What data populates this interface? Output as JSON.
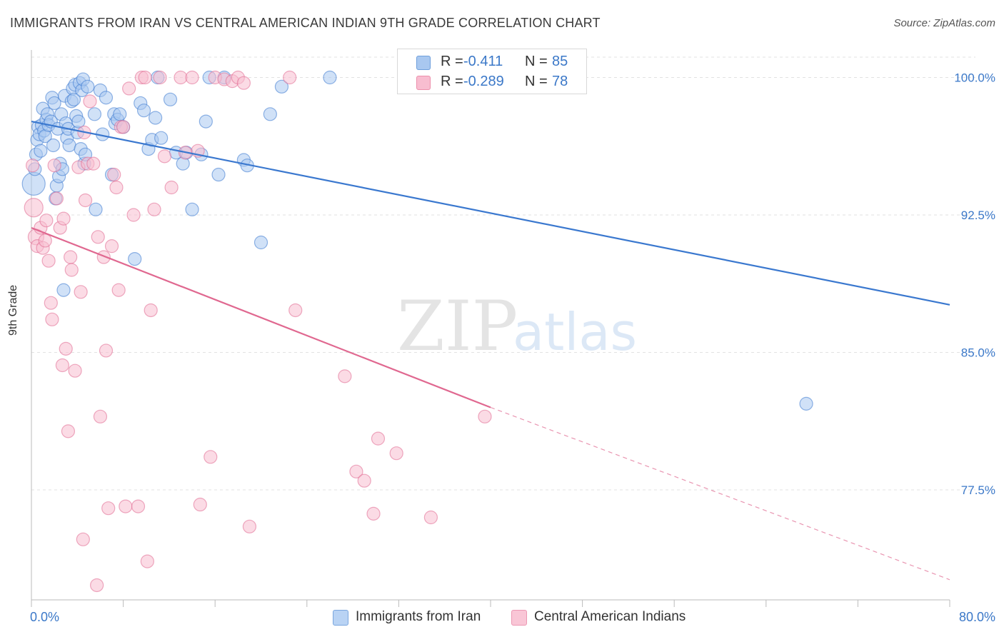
{
  "title": "IMMIGRANTS FROM IRAN VS CENTRAL AMERICAN INDIAN 9TH GRADE CORRELATION CHART",
  "source": "Source: ZipAtlas.com",
  "watermark": {
    "zip": "ZIP",
    "atlas": "atlas"
  },
  "legend": {
    "rows": [
      {
        "r_label": "R =",
        "r_value": "-0.411",
        "n_label": "N =",
        "n_value": "85",
        "fill": "#a9c8f0",
        "stroke": "#6e9fdc"
      },
      {
        "r_label": "R =",
        "r_value": "-0.289",
        "n_label": "N =",
        "n_value": "78",
        "fill": "#f8bdd0",
        "stroke": "#ec8fab"
      }
    ]
  },
  "bottom_legend": [
    {
      "label": "Immigrants from Iran",
      "fill": "#b9d3f4",
      "stroke": "#7aa6de"
    },
    {
      "label": "Central American Indians",
      "fill": "#f9c6d6",
      "stroke": "#ec98b3"
    }
  ],
  "chart_data": {
    "type": "scatter",
    "title": "IMMIGRANTS FROM IRAN VS CENTRAL AMERICAN INDIAN 9TH GRADE CORRELATION CHART",
    "xlabel": "",
    "ylabel": "9th Grade",
    "xlim": [
      0,
      80
    ],
    "ylim": [
      71.5,
      101.5
    ],
    "x_ticks": [
      "0.0%",
      "80.0%"
    ],
    "y_ticks": [
      {
        "value": 100,
        "label": "100.0%"
      },
      {
        "value": 92.5,
        "label": "92.5%"
      },
      {
        "value": 85,
        "label": "85.0%"
      },
      {
        "value": 77.5,
        "label": "77.5%"
      }
    ],
    "grid": true,
    "legend_placement": "top-center",
    "series": [
      {
        "name": "Immigrants from Iran",
        "color": "#3a78cf",
        "fill": "#a9c8f0",
        "trend": {
          "x0": 0,
          "y0": 97.6,
          "x1": 80,
          "y1": 87.6
        },
        "points": [
          [
            0.2,
            94.2,
            16
          ],
          [
            0.3,
            95.0,
            9
          ],
          [
            0.4,
            95.8,
            9
          ],
          [
            0.5,
            96.6,
            9
          ],
          [
            0.6,
            97.3,
            9
          ],
          [
            0.7,
            96.9,
            9
          ],
          [
            0.8,
            96.0,
            9
          ],
          [
            0.9,
            97.4,
            9
          ],
          [
            1.0,
            98.3,
            9
          ],
          [
            1.1,
            97.1,
            9
          ],
          [
            1.2,
            96.8,
            9
          ],
          [
            1.3,
            97.7,
            9
          ],
          [
            1.4,
            98.0,
            9
          ],
          [
            1.5,
            97.4,
            9
          ],
          [
            1.7,
            97.6,
            9
          ],
          [
            1.8,
            98.9,
            9
          ],
          [
            1.9,
            96.3,
            9
          ],
          [
            2.0,
            98.6,
            9
          ],
          [
            2.1,
            93.4,
            9
          ],
          [
            2.2,
            94.1,
            9
          ],
          [
            2.3,
            97.2,
            9
          ],
          [
            2.4,
            94.6,
            9
          ],
          [
            2.5,
            95.3,
            9
          ],
          [
            2.6,
            98.0,
            9
          ],
          [
            2.7,
            95.0,
            9
          ],
          [
            2.8,
            88.4,
            9
          ],
          [
            2.9,
            99.0,
            9
          ],
          [
            3.0,
            97.5,
            9
          ],
          [
            3.1,
            96.7,
            9
          ],
          [
            3.2,
            97.2,
            9
          ],
          [
            3.3,
            96.3,
            9
          ],
          [
            3.5,
            98.7,
            9
          ],
          [
            3.6,
            99.4,
            9
          ],
          [
            3.7,
            98.8,
            9
          ],
          [
            3.8,
            99.6,
            9
          ],
          [
            3.9,
            97.9,
            9
          ],
          [
            4.0,
            97.0,
            9
          ],
          [
            4.1,
            97.6,
            9
          ],
          [
            4.2,
            99.7,
            9
          ],
          [
            4.3,
            96.1,
            9
          ],
          [
            4.4,
            99.3,
            9
          ],
          [
            4.5,
            99.9,
            9
          ],
          [
            4.6,
            95.3,
            9
          ],
          [
            4.7,
            95.8,
            9
          ],
          [
            4.9,
            99.5,
            9
          ],
          [
            5.5,
            98.0,
            9
          ],
          [
            5.6,
            92.8,
            9
          ],
          [
            6.0,
            99.3,
            9
          ],
          [
            6.2,
            96.9,
            9
          ],
          [
            6.5,
            98.9,
            9
          ],
          [
            7.0,
            94.7,
            9
          ],
          [
            7.2,
            98.0,
            9
          ],
          [
            7.3,
            97.5,
            9
          ],
          [
            7.5,
            97.7,
            9
          ],
          [
            7.7,
            98.0,
            9
          ],
          [
            8.0,
            97.3,
            9
          ],
          [
            9.0,
            90.1,
            9
          ],
          [
            9.5,
            98.6,
            9
          ],
          [
            9.8,
            98.2,
            9
          ],
          [
            10.2,
            96.1,
            9
          ],
          [
            10.5,
            96.6,
            9
          ],
          [
            10.8,
            97.8,
            9
          ],
          [
            11.0,
            100.0,
            9
          ],
          [
            11.3,
            96.7,
            9
          ],
          [
            12.1,
            98.8,
            9
          ],
          [
            12.6,
            95.9,
            9
          ],
          [
            13.2,
            95.3,
            9
          ],
          [
            13.5,
            95.9,
            9
          ],
          [
            14.0,
            92.8,
            9
          ],
          [
            14.8,
            95.8,
            9
          ],
          [
            15.2,
            97.6,
            9
          ],
          [
            15.5,
            100.0,
            9
          ],
          [
            16.3,
            94.7,
            9
          ],
          [
            16.8,
            100.0,
            9
          ],
          [
            18.5,
            95.5,
            9
          ],
          [
            18.8,
            95.2,
            9
          ],
          [
            20.0,
            91.0,
            9
          ],
          [
            20.8,
            98.0,
            9
          ],
          [
            21.8,
            99.5,
            9
          ],
          [
            26.0,
            100.0,
            9
          ],
          [
            67.5,
            82.2,
            9
          ]
        ]
      },
      {
        "name": "Central American Indians",
        "color": "#e06890",
        "fill": "#f8bdd0",
        "trend": {
          "x0": 0,
          "y0": 91.8,
          "x1": 40,
          "y1": 82.0
        },
        "trend_extension": {
          "x0": 40,
          "y0": 82.0,
          "x1": 80,
          "y1": 72.6
        },
        "points": [
          [
            0.1,
            95.2,
            9
          ],
          [
            0.2,
            92.9,
            13
          ],
          [
            0.4,
            91.3,
            11
          ],
          [
            0.5,
            90.8,
            9
          ],
          [
            0.8,
            91.8,
            9
          ],
          [
            1.0,
            90.7,
            9
          ],
          [
            1.2,
            91.1,
            9
          ],
          [
            1.3,
            92.2,
            9
          ],
          [
            1.5,
            90.0,
            9
          ],
          [
            1.7,
            87.7,
            9
          ],
          [
            1.8,
            86.8,
            9
          ],
          [
            2.0,
            95.2,
            9
          ],
          [
            2.2,
            93.4,
            9
          ],
          [
            2.5,
            91.8,
            9
          ],
          [
            2.7,
            84.3,
            9
          ],
          [
            2.8,
            92.3,
            9
          ],
          [
            3.0,
            85.2,
            9
          ],
          [
            3.2,
            80.7,
            9
          ],
          [
            3.4,
            90.2,
            9
          ],
          [
            3.5,
            89.5,
            9
          ],
          [
            3.8,
            84.0,
            9
          ],
          [
            4.1,
            95.1,
            9
          ],
          [
            4.3,
            88.3,
            9
          ],
          [
            4.5,
            74.8,
            9
          ],
          [
            4.6,
            97.0,
            9
          ],
          [
            4.7,
            93.3,
            9
          ],
          [
            4.9,
            95.3,
            9
          ],
          [
            5.1,
            98.7,
            9
          ],
          [
            5.4,
            95.3,
            9
          ],
          [
            5.7,
            72.3,
            9
          ],
          [
            5.8,
            91.3,
            9
          ],
          [
            6.0,
            81.5,
            9
          ],
          [
            6.3,
            90.2,
            9
          ],
          [
            6.5,
            85.1,
            9
          ],
          [
            6.7,
            76.5,
            9
          ],
          [
            7.0,
            90.8,
            9
          ],
          [
            7.2,
            94.7,
            9
          ],
          [
            7.4,
            94.0,
            9
          ],
          [
            7.6,
            88.4,
            9
          ],
          [
            7.8,
            97.3,
            9
          ],
          [
            8.0,
            97.3,
            9
          ],
          [
            8.2,
            76.6,
            9
          ],
          [
            8.5,
            99.4,
            9
          ],
          [
            8.9,
            92.5,
            9
          ],
          [
            9.3,
            76.6,
            9
          ],
          [
            9.6,
            100.0,
            9
          ],
          [
            9.9,
            100.0,
            9
          ],
          [
            10.1,
            73.6,
            9
          ],
          [
            10.4,
            87.3,
            9
          ],
          [
            10.7,
            92.8,
            9
          ],
          [
            11.2,
            100.0,
            9
          ],
          [
            11.6,
            95.7,
            9
          ],
          [
            12.2,
            94.0,
            9
          ],
          [
            13.0,
            100.0,
            9
          ],
          [
            13.4,
            95.9,
            9
          ],
          [
            14.0,
            100.0,
            9
          ],
          [
            14.5,
            96.0,
            9
          ],
          [
            14.7,
            76.7,
            9
          ],
          [
            15.6,
            79.3,
            9
          ],
          [
            16.0,
            100.0,
            9
          ],
          [
            16.8,
            99.9,
            9
          ],
          [
            17.5,
            99.8,
            9
          ],
          [
            18.0,
            100.0,
            9
          ],
          [
            18.5,
            99.7,
            9
          ],
          [
            19.0,
            75.5,
            9
          ],
          [
            22.5,
            100.0,
            9
          ],
          [
            23.0,
            87.3,
            9
          ],
          [
            27.3,
            83.7,
            9
          ],
          [
            28.3,
            78.5,
            9
          ],
          [
            29.0,
            78.0,
            9
          ],
          [
            29.8,
            76.2,
            9
          ],
          [
            30.2,
            80.3,
            9
          ],
          [
            31.8,
            79.5,
            9
          ],
          [
            34.8,
            76.0,
            9
          ],
          [
            39.5,
            81.5,
            9
          ]
        ]
      }
    ]
  }
}
